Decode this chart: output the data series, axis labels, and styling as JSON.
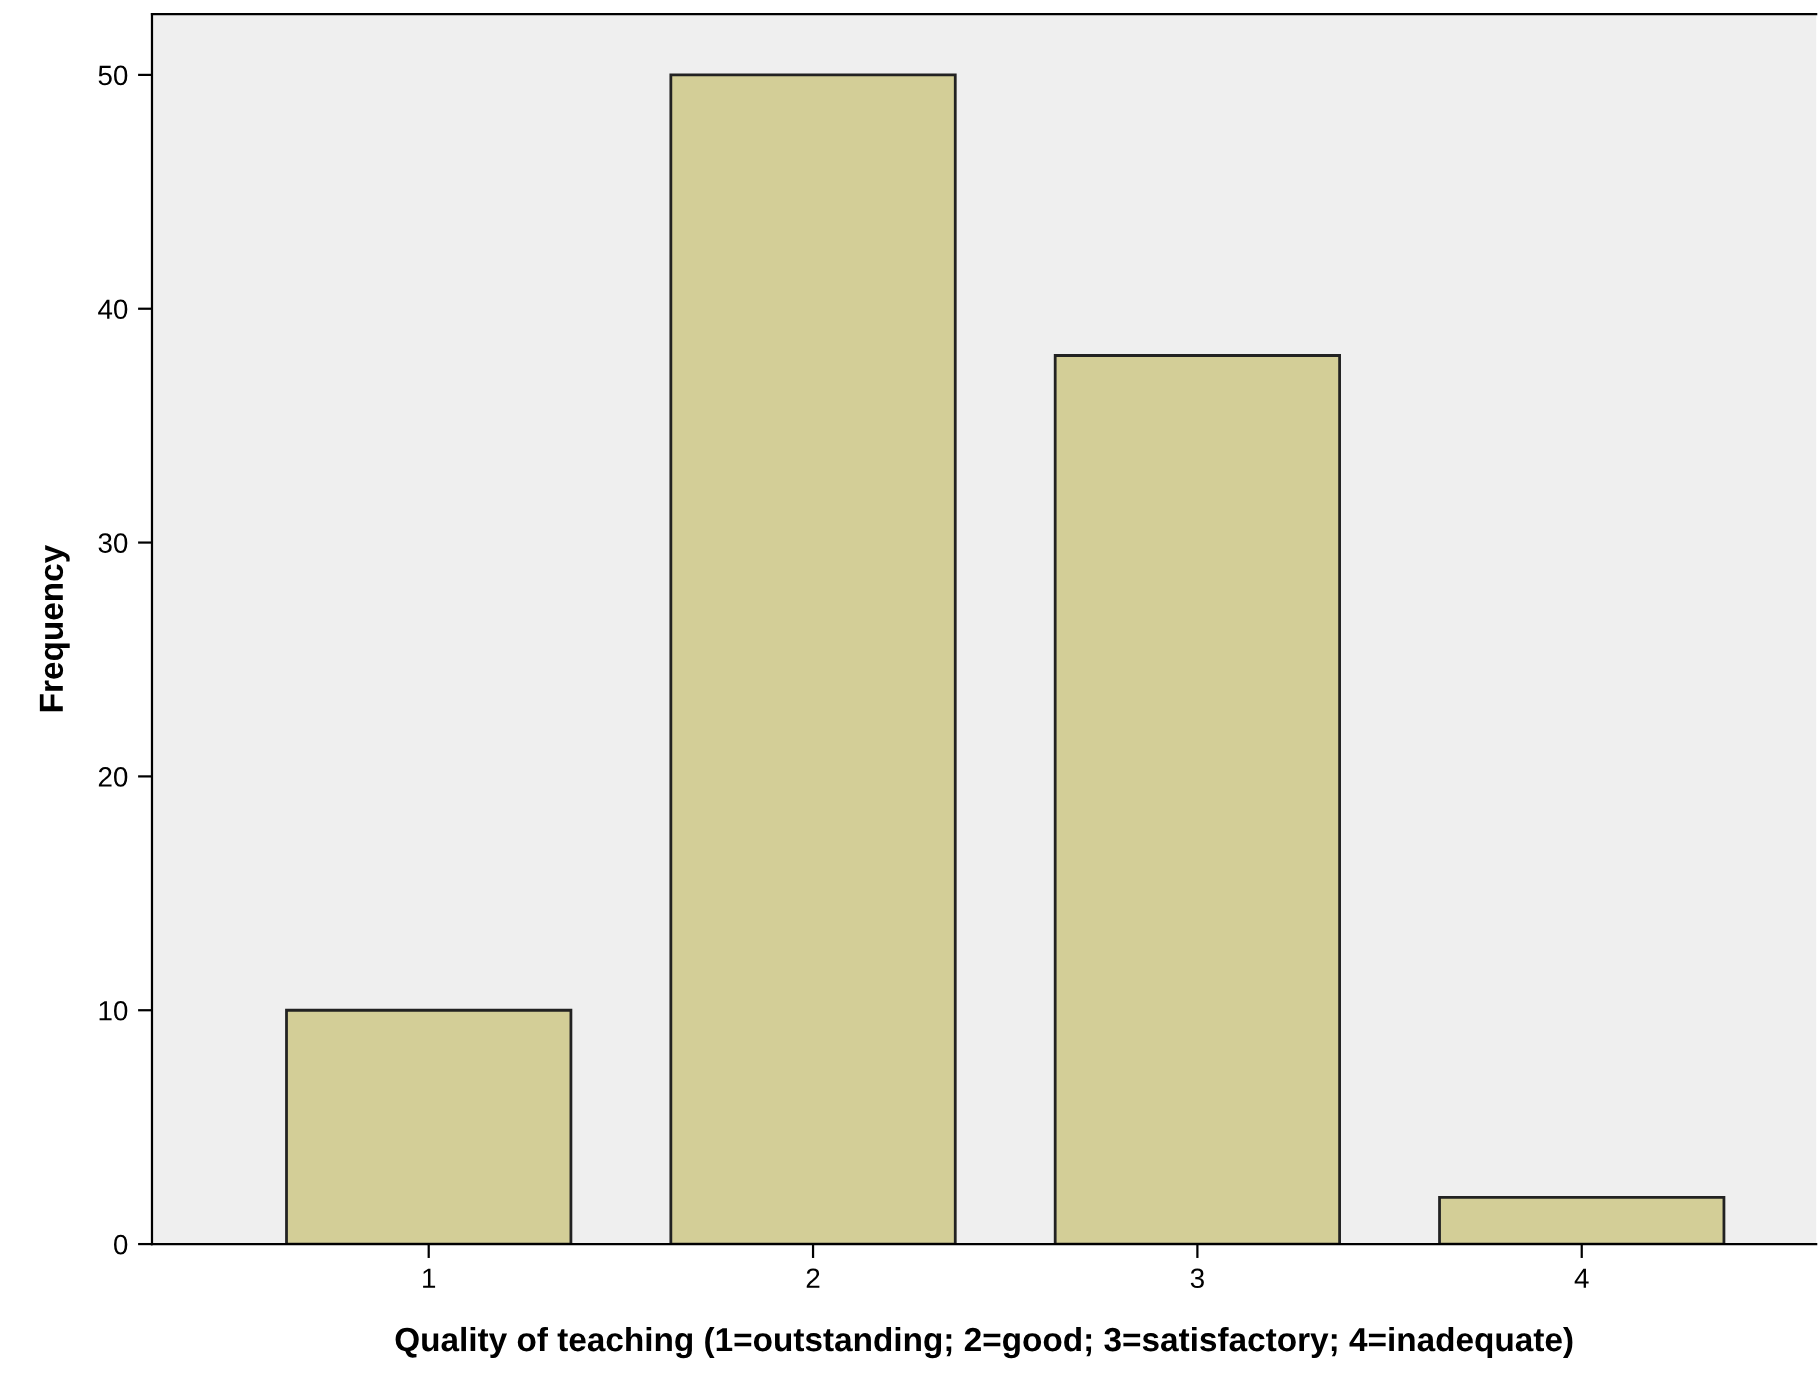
{
  "chart_data": {
    "type": "bar",
    "xlabel": "Quality of teaching (1=outstanding; 2=good; 3=satisfactory; 4=inadequate)",
    "ylabel": "Frequency",
    "categories": [
      "1",
      "2",
      "3",
      "4"
    ],
    "values": [
      10,
      50,
      38,
      2
    ],
    "color": "#d3ce97",
    "ylim": [
      0,
      52.6
    ],
    "yticks": [
      0,
      10,
      20,
      30,
      40,
      50
    ],
    "grid": false
  }
}
